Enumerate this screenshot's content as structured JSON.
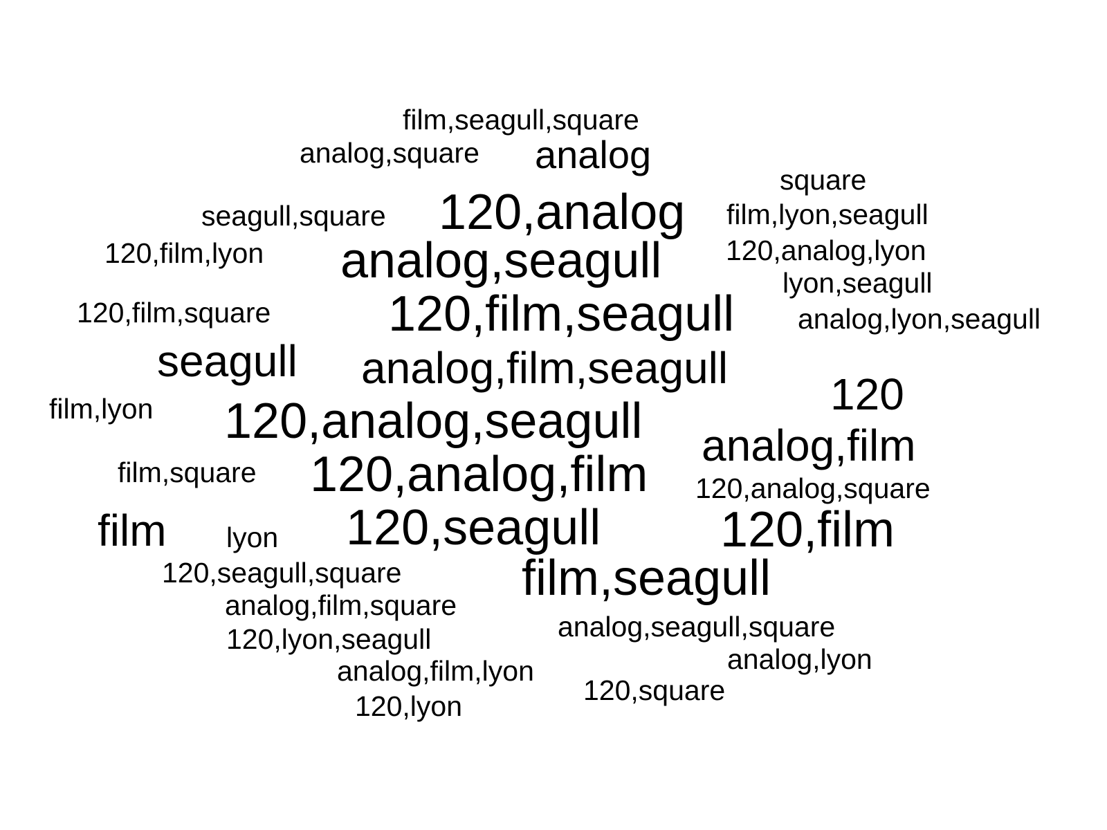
{
  "words": [
    "film,seagull,square",
    "analog,square",
    "analog",
    "square",
    "seagull,square",
    "120,analog",
    "film,lyon,seagull",
    "120,film,lyon",
    "analog,seagull",
    "120,analog,lyon",
    "lyon,seagull",
    "120,film,square",
    "120,film,seagull",
    "analog,lyon,seagull",
    "seagull",
    "analog,film,seagull",
    "120",
    "film,lyon",
    "120,analog,seagull",
    "analog,film",
    "film,square",
    "120,analog,film",
    "120,analog,square",
    "film",
    "lyon",
    "120,seagull",
    "120,film",
    "120,seagull,square",
    "film,seagull",
    "analog,film,square",
    "analog,seagull,square",
    "120,lyon,seagull",
    "analog,lyon",
    "analog,film,lyon",
    "120,square",
    "120,lyon"
  ]
}
